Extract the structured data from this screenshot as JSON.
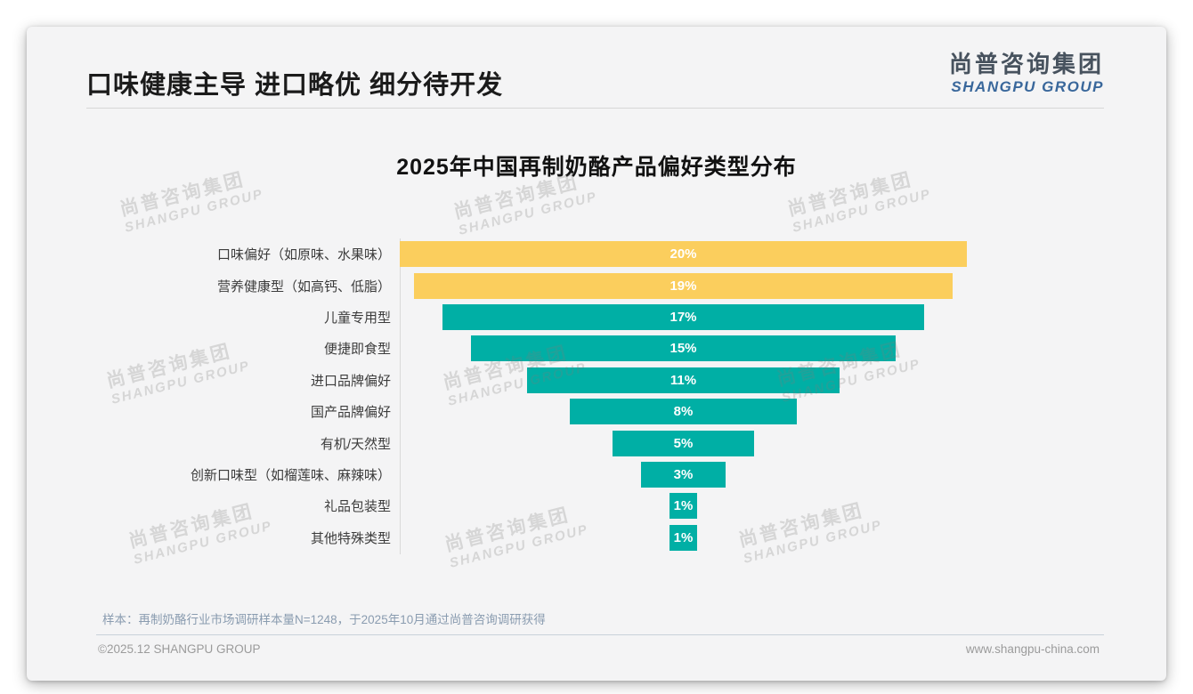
{
  "page": {
    "title": "口味健康主导 进口略优 细分待开发",
    "logo": {
      "cn": "尚普咨询集团",
      "en": "SHANGPU GROUP"
    },
    "watermark": {
      "cn": "尚普咨询集团",
      "en": "SHANGPU GROUP"
    }
  },
  "colors": {
    "accent_yellow": "#FBCE5D",
    "accent_teal": "#00AFA5",
    "logo_blue": "#39679B",
    "slide_bg": "#F4F4F5"
  },
  "chart_data": {
    "type": "bar",
    "variant": "centered-funnel",
    "title": "2025年中国再制奶酪产品偏好类型分布",
    "categories": [
      "口味偏好（如原味、水果味）",
      "营养健康型（如高钙、低脂）",
      "儿童专用型",
      "便捷即食型",
      "进口品牌偏好",
      "国产品牌偏好",
      "有机/天然型",
      "创新口味型（如榴莲味、麻辣味）",
      "礼品包装型",
      "其他特殊类型"
    ],
    "values": [
      20,
      19,
      17,
      15,
      11,
      8,
      5,
      3,
      1,
      1
    ],
    "unit": "%",
    "bar_colors": [
      "#FBCE5D",
      "#FBCE5D",
      "#00AFA5",
      "#00AFA5",
      "#00AFA5",
      "#00AFA5",
      "#00AFA5",
      "#00AFA5",
      "#00AFA5",
      "#00AFA5"
    ],
    "xlim": [
      0,
      20
    ],
    "value_label_color": "#FFFFFF",
    "legend": null,
    "grid": false
  },
  "footnote": "样本：再制奶酪行业市场调研样本量N=1248，于2025年10月通过尚普咨询调研获得",
  "footer": {
    "left": "©2025.12 SHANGPU GROUP",
    "right": "www.shangpu-china.com"
  }
}
